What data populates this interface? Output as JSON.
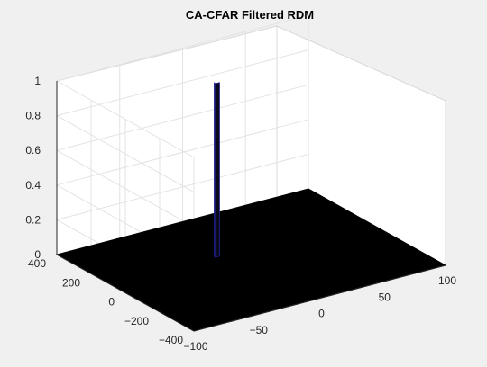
{
  "chart_data": {
    "type": "surface",
    "title": "CA-CFAR Filtered RDM",
    "xlabel": "",
    "ylabel": "",
    "zlabel": "",
    "x_axis": {
      "range": [
        -100,
        100
      ],
      "ticks": [
        -100,
        -50,
        0,
        50,
        100
      ]
    },
    "y_axis": {
      "range": [
        -400,
        400
      ],
      "ticks": [
        -400,
        -200,
        0,
        200,
        400
      ]
    },
    "z_axis": {
      "range": [
        0,
        1
      ],
      "ticks": [
        0,
        0.2,
        0.4,
        0.6,
        0.8,
        1
      ]
    },
    "grid": true,
    "surface_base_value": 0,
    "surface_extent": {
      "x": [
        -100,
        100
      ],
      "y": [
        -400,
        400
      ]
    },
    "peaks": [
      {
        "x": -15,
        "y": 90,
        "z": 1
      }
    ],
    "colors": {
      "surface": "#000000",
      "peak_edge": "#1f1f8f",
      "background": "#f0f0f0",
      "axes_background": "#ffffff"
    }
  }
}
